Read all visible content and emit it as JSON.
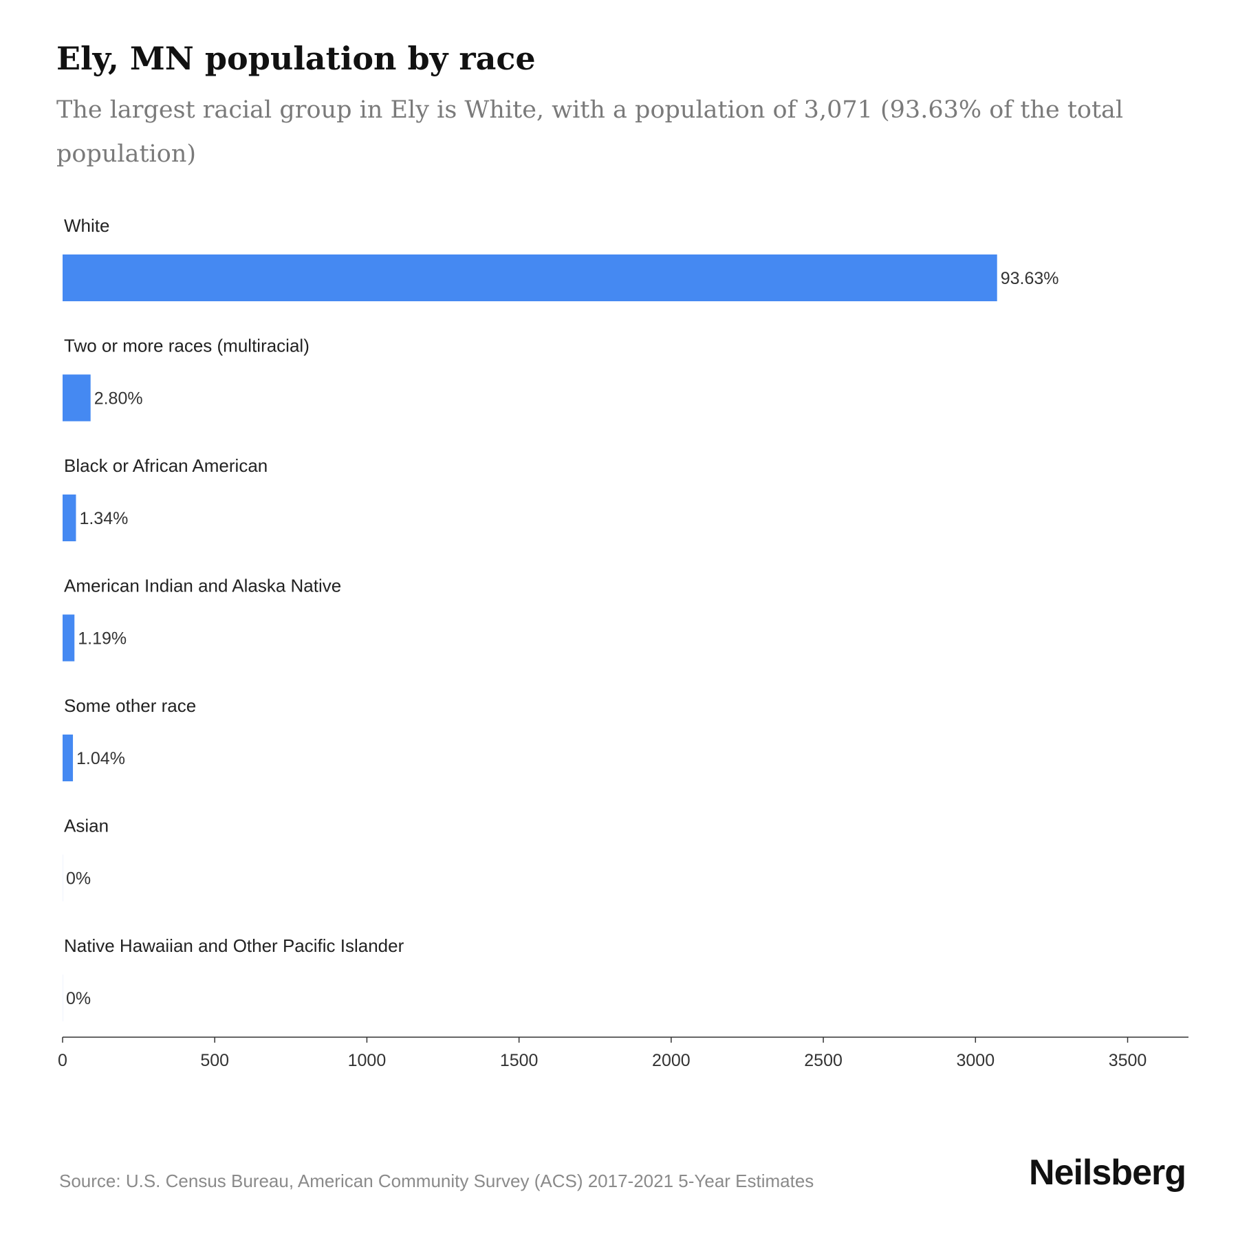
{
  "header": {
    "title": "Ely, MN population by race",
    "subtitle": "The largest racial group in Ely is White, with a population of 3,071 (93.63% of the total population)"
  },
  "chart_data": {
    "type": "bar",
    "orientation": "horizontal",
    "categories": [
      "White",
      "Two or more races (multiracial)",
      "Black or African American",
      "American Indian and Alaska Native",
      "Some other race",
      "Asian",
      "Native Hawaiian and Other Pacific Islander"
    ],
    "values": [
      3071,
      92,
      44,
      39,
      34,
      0,
      0
    ],
    "data_labels": [
      "93.63%",
      "2.80%",
      "1.34%",
      "1.19%",
      "1.04%",
      "0%",
      "0%"
    ],
    "xlim": [
      0,
      3700
    ],
    "xticks": [
      0,
      500,
      1000,
      1500,
      2000,
      2500,
      3000,
      3500
    ],
    "bar_color": "#4589f2",
    "grid": false
  },
  "footer": {
    "source": "Source: U.S. Census Bureau, American Community Survey (ACS) 2017-2021 5-Year Estimates",
    "brand": "Neilsberg"
  }
}
